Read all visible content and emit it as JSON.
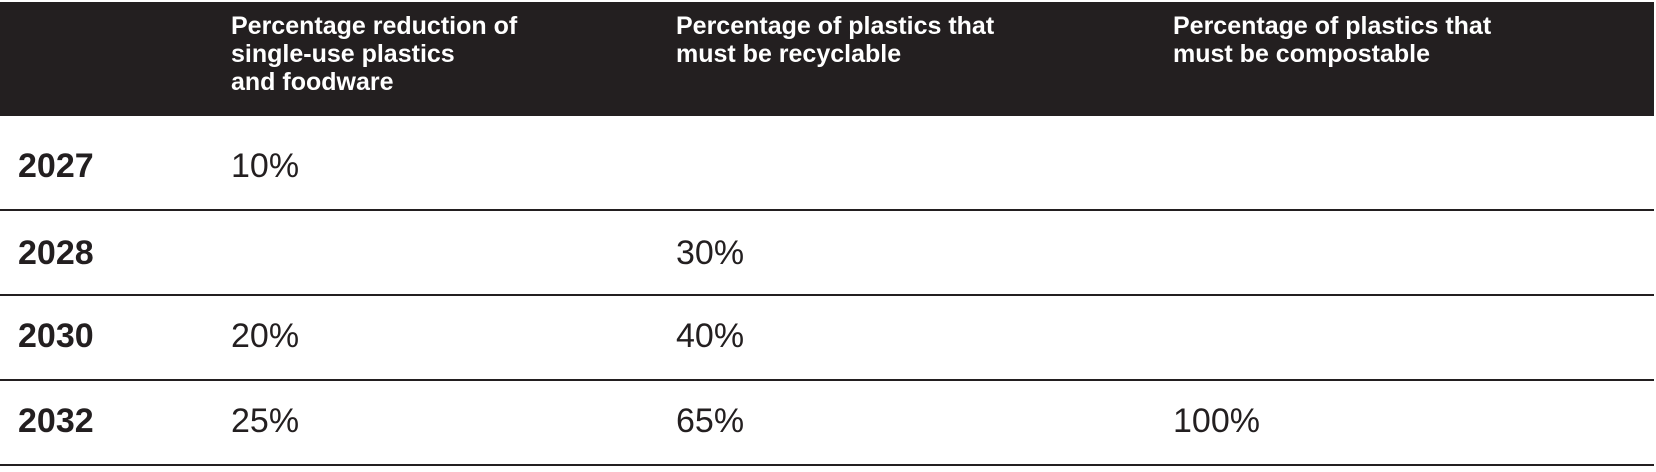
{
  "table": {
    "headers": [
      "",
      "Percentage reduction of\nsingle-use plastics\nand foodware",
      "Percentage of plastics that\nmust be recyclable",
      "Percentage of plastics that\n must be compostable"
    ],
    "rows": [
      {
        "year": "2027",
        "reduction": "10%",
        "recyclable": "",
        "compostable": ""
      },
      {
        "year": "2028",
        "reduction": "",
        "recyclable": "30%",
        "compostable": ""
      },
      {
        "year": "2030",
        "reduction": "20%",
        "recyclable": "40%",
        "compostable": ""
      },
      {
        "year": "2032",
        "reduction": "25%",
        "recyclable": "65%",
        "compostable": "100%"
      }
    ]
  },
  "colors": {
    "header_background": "#231f20",
    "header_text": "#ffffff",
    "body_text": "#231f20",
    "rule": "#231f20"
  }
}
